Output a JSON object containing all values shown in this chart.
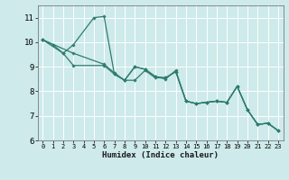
{
  "xlabel": "Humidex (Indice chaleur)",
  "xlim": [
    -0.5,
    23.5
  ],
  "ylim": [
    6,
    11.5
  ],
  "yticks": [
    6,
    7,
    8,
    9,
    10,
    11
  ],
  "xticks": [
    0,
    1,
    2,
    3,
    4,
    5,
    6,
    7,
    8,
    9,
    10,
    11,
    12,
    13,
    14,
    15,
    16,
    17,
    18,
    19,
    20,
    21,
    22,
    23
  ],
  "bg_color": "#ceeaea",
  "plot_bg_color": "#ceeaea",
  "line_color": "#2e7d6e",
  "grid_color": "#b0d8d8",
  "series": [
    {
      "x": [
        0,
        1,
        2,
        3,
        5,
        6,
        7,
        8,
        9,
        10,
        11,
        12,
        13,
        14,
        15,
        16,
        17,
        18,
        19,
        20,
        21,
        22,
        23
      ],
      "y": [
        10.1,
        9.9,
        9.55,
        9.9,
        11.0,
        11.05,
        8.7,
        8.45,
        8.45,
        8.85,
        8.55,
        8.55,
        8.8,
        7.6,
        7.5,
        7.55,
        7.6,
        7.55,
        8.2,
        7.25,
        6.65,
        6.7,
        6.4
      ]
    },
    {
      "x": [
        0,
        2,
        3,
        6,
        7,
        8,
        9,
        10,
        11,
        12,
        13,
        14,
        15,
        16,
        17,
        18,
        19,
        20,
        21,
        22,
        23
      ],
      "y": [
        10.1,
        9.55,
        9.05,
        9.05,
        8.7,
        8.45,
        9.0,
        8.9,
        8.6,
        8.55,
        8.8,
        7.6,
        7.5,
        7.55,
        7.6,
        7.55,
        8.2,
        7.25,
        6.65,
        6.7,
        6.4
      ]
    },
    {
      "x": [
        0,
        3,
        6,
        7,
        8,
        9,
        10,
        11,
        12,
        13,
        14,
        15,
        16,
        17,
        18,
        19,
        20,
        21,
        22,
        23
      ],
      "y": [
        10.1,
        9.55,
        9.1,
        8.75,
        8.45,
        9.0,
        8.9,
        8.6,
        8.5,
        8.85,
        7.6,
        7.5,
        7.55,
        7.6,
        7.55,
        8.2,
        7.25,
        6.65,
        6.7,
        6.4
      ]
    }
  ]
}
